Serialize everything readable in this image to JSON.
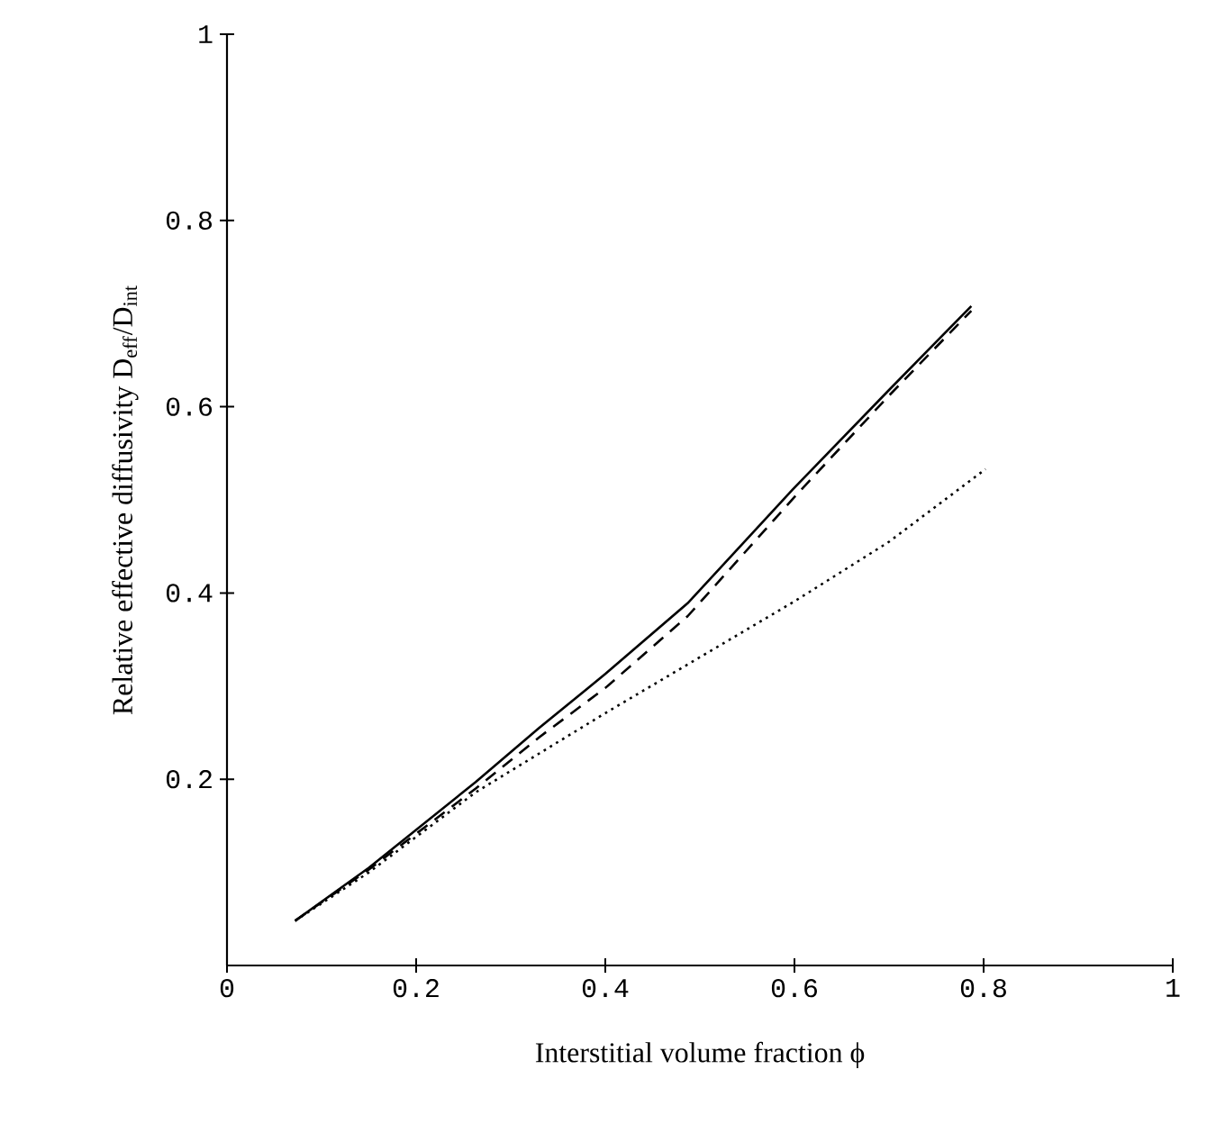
{
  "chart_data": {
    "type": "line",
    "xlabel": "Interstitial volume fraction ϕ",
    "ylabel": "Relative effective diffusivity D$_{eff}$/D$_{int}$",
    "xlim": [
      0,
      1
    ],
    "ylim": [
      0,
      1
    ],
    "xticks": [
      0,
      0.2,
      0.4,
      0.6,
      0.8,
      1
    ],
    "yticks": [
      0.2,
      0.4,
      0.6,
      0.8,
      1
    ],
    "marker": "none",
    "series": [
      {
        "color": "#000000",
        "line_style": "solid",
        "x": [
          0.072,
          0.15,
          0.263,
          0.33,
          0.4,
          0.487,
          0.598,
          0.7,
          0.787
        ],
        "values": [
          0.048,
          0.105,
          0.197,
          0.255,
          0.313,
          0.389,
          0.511,
          0.618,
          0.708
        ]
      },
      {
        "color": "#000000",
        "line_style": "dashed",
        "x": [
          0.072,
          0.15,
          0.263,
          0.33,
          0.4,
          0.487,
          0.6,
          0.7,
          0.787
        ],
        "values": [
          0.048,
          0.103,
          0.19,
          0.245,
          0.298,
          0.375,
          0.503,
          0.612,
          0.703
        ]
      },
      {
        "color": "#000000",
        "line_style": "dotted",
        "x": [
          0.072,
          0.15,
          0.263,
          0.4,
          0.5,
          0.6,
          0.7,
          0.802
        ],
        "values": [
          0.048,
          0.1,
          0.186,
          0.271,
          0.331,
          0.391,
          0.455,
          0.533
        ]
      }
    ]
  }
}
